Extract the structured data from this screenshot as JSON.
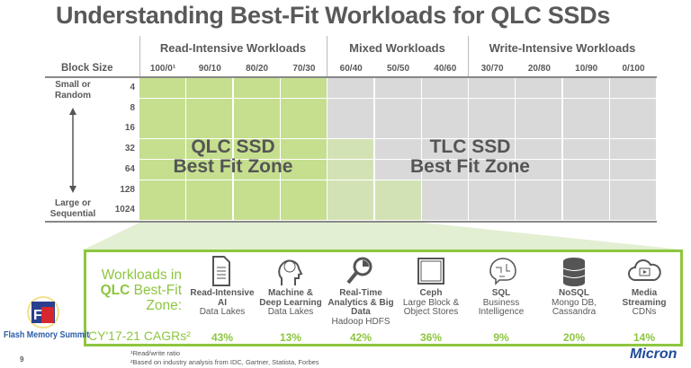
{
  "title": "Understanding Best-Fit Workloads for QLC SSDs",
  "groups": [
    "Read-Intensive Workloads",
    "Mixed Workloads",
    "Write-Intensive Workloads"
  ],
  "block_size_label": "Block Size",
  "columns": [
    "100/0¹",
    "90/10",
    "80/20",
    "70/30",
    "60/40",
    "50/50",
    "40/60",
    "30/70",
    "20/80",
    "10/90",
    "0/100"
  ],
  "rows": [
    "4",
    "8",
    "16",
    "32",
    "64",
    "128",
    "1024"
  ],
  "small_label": "Small or Random",
  "large_label": "Large or Sequential",
  "qlc_zone": {
    "line1": "QLC SSD",
    "line2": "Best Fit Zone"
  },
  "tlc_zone": {
    "line1": "TLC SSD",
    "line2": "Best Fit Zone"
  },
  "colors": {
    "qlc_green": "#c5df8f",
    "tlc_gray": "#d9d9d9",
    "accent": "#8dc63f",
    "mixed": "#d3e2b5"
  },
  "workloads_heading": {
    "l1": "Workloads in",
    "l2a": "QLC",
    "l2b": " Best-Fit",
    "l3": "Zone:"
  },
  "cagr_label": "CY'17-21 CAGRs²",
  "workloads": [
    {
      "icon": "document-icon",
      "title": "Read-Intensive AI",
      "sub": "Data Lakes",
      "cagr": "43%"
    },
    {
      "icon": "brain-head-icon",
      "title": "Machine & Deep Learning",
      "sub": "Data Lakes",
      "cagr": "13%"
    },
    {
      "icon": "magnifier-chart-icon",
      "title": "Real-Time Analytics & Big Data",
      "sub": "Hadoop HDFS",
      "cagr": "42%"
    },
    {
      "icon": "storage-frame-icon",
      "title": "Ceph",
      "sub": "Large Block & Object Stores",
      "cagr": "36%"
    },
    {
      "icon": "circuit-brain-icon",
      "title": "SQL",
      "sub": "Business Intelligence",
      "cagr": "9%"
    },
    {
      "icon": "database-icon",
      "title": "NoSQL",
      "sub": "Mongo DB, Cassandra",
      "cagr": "20%"
    },
    {
      "icon": "cloud-video-icon",
      "title": "Media Streaming",
      "sub": "CDNs",
      "cagr": "14%"
    }
  ],
  "footnotes": [
    "¹Read/write ratio",
    "²Based on industry analysis from IDC, Gartner, Statista, Forbes"
  ],
  "page_number": "9",
  "fms_logo_text": "Flash Memory Summit",
  "micron_logo": "Micron"
}
